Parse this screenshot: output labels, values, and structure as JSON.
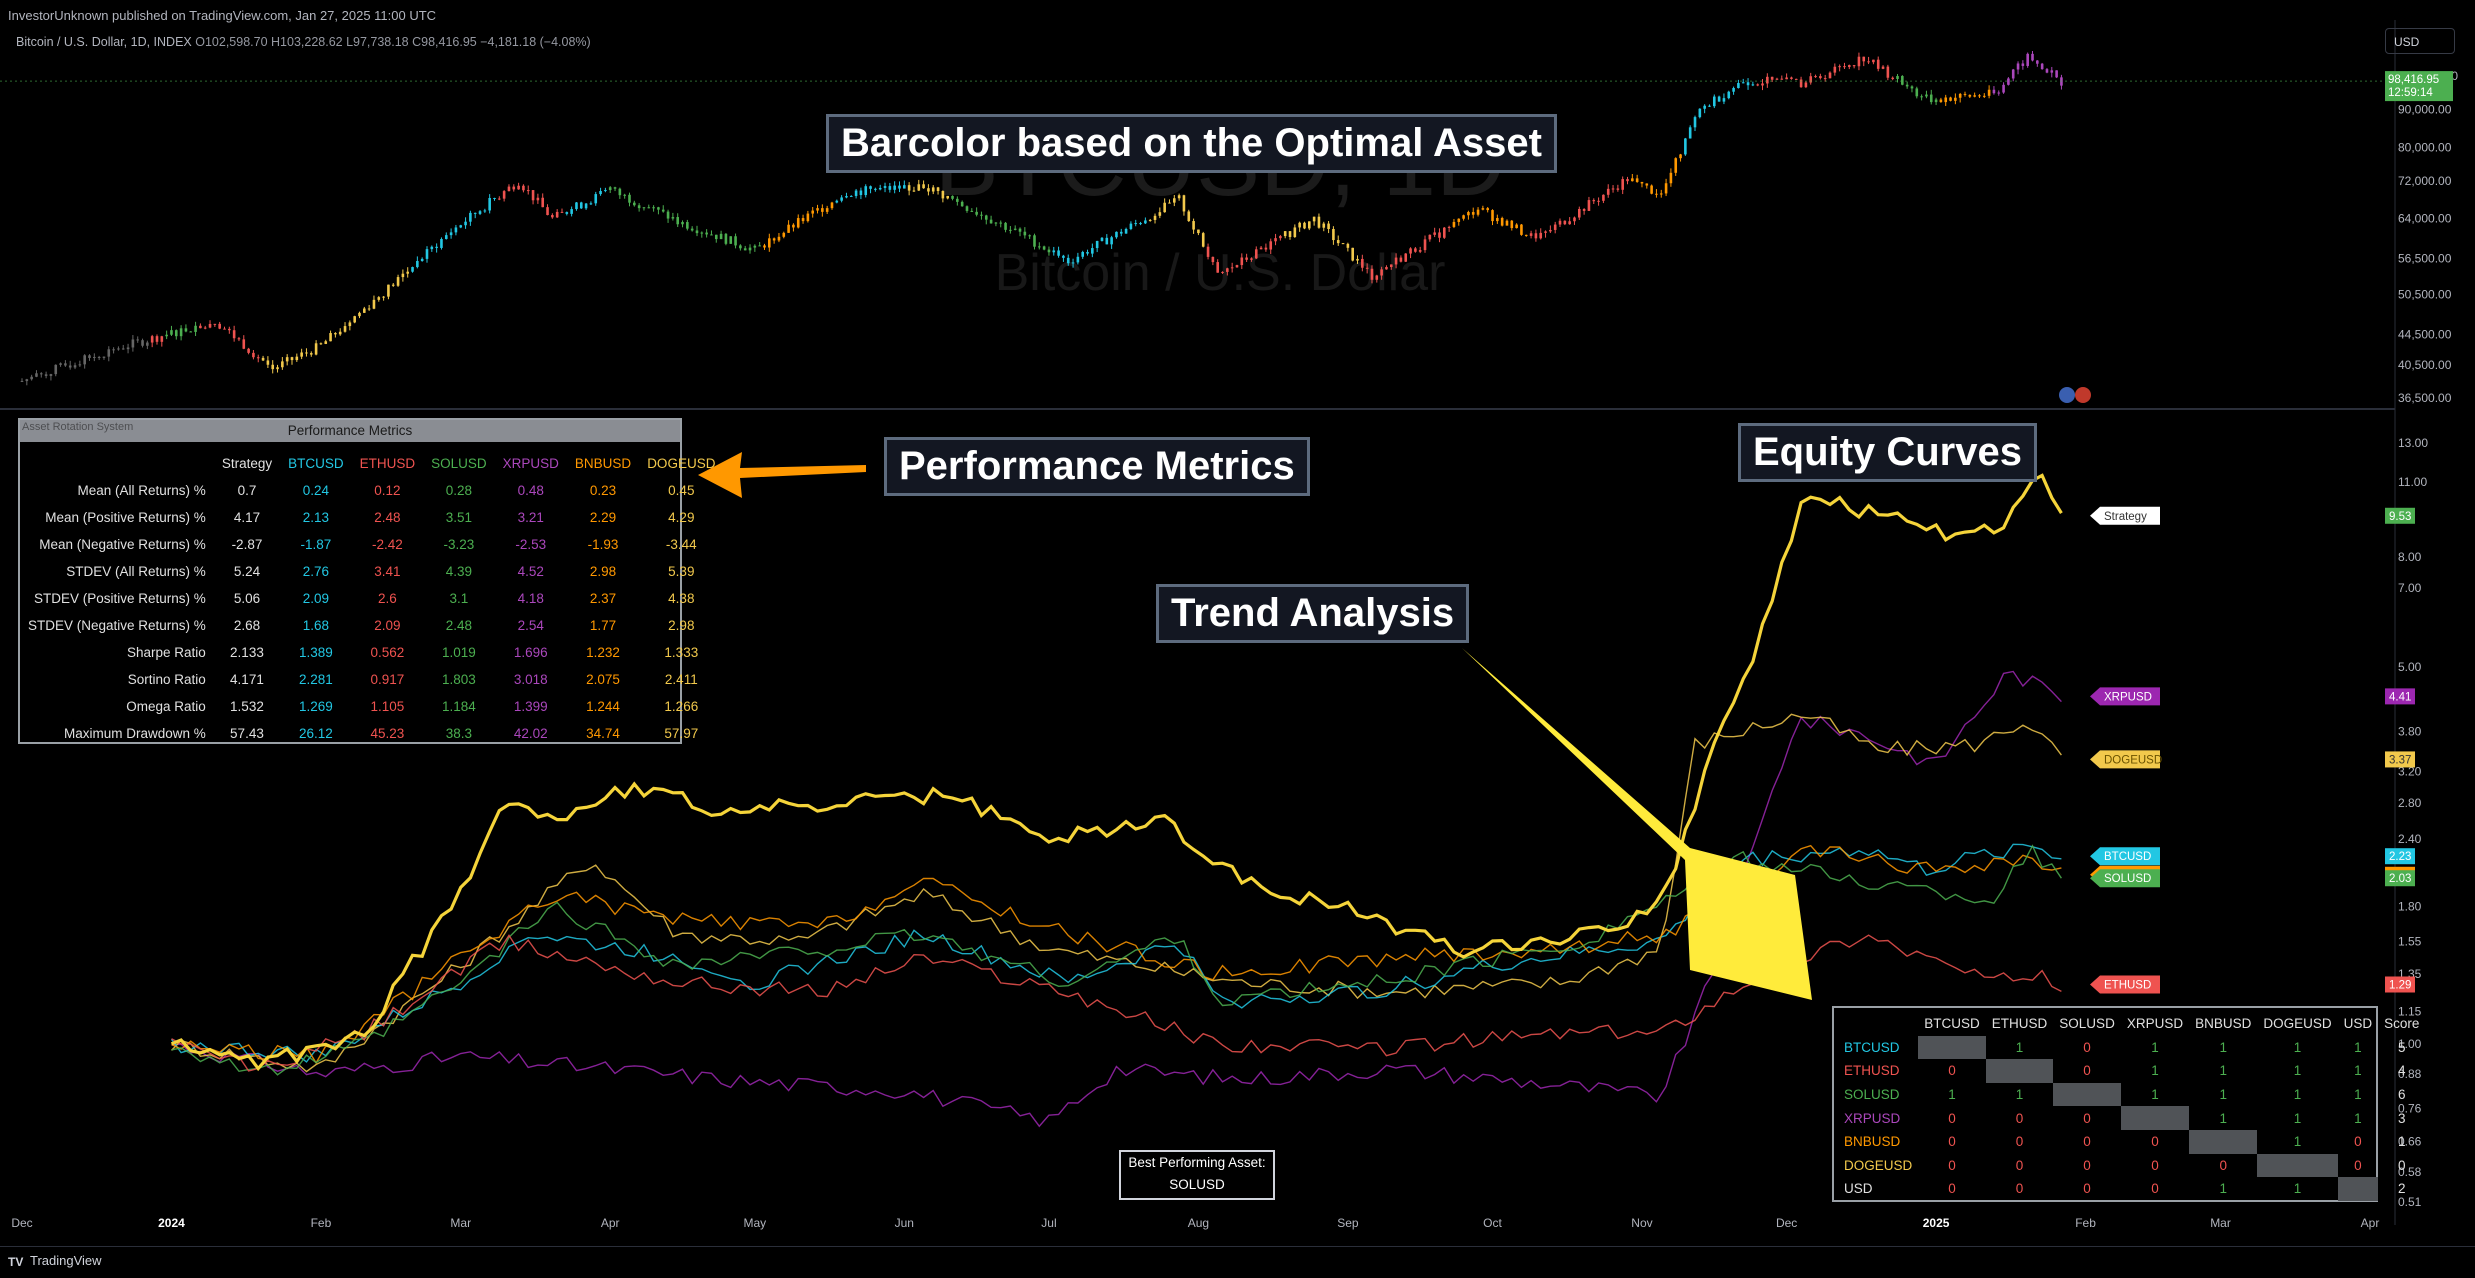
{
  "header": {
    "published": "InvestorUnknown published on TradingView.com, Jan 27, 2025 11:00 UTC",
    "symbol": "Bitcoin / U.S. Dollar, 1D, INDEX",
    "ohlc": "O102,598.70  H103,228.62  L97,738.18  C98,416.95  −4,181.18 (−4.08%)",
    "currency": "USD",
    "watermark_1": "BTCUSD, 1D",
    "watermark_2": "Bitcoin / U.S. Dollar"
  },
  "callouts": {
    "barcolor": "Barcolor based on the Optimal Asset",
    "performance": "Performance Metrics",
    "equity": "Equity Curves",
    "trend": "Trend Analysis"
  },
  "chart_data": [
    {
      "type": "candlestick",
      "name": "BTCUSD price",
      "y_scale": "log",
      "y_ticks": [
        "36,500.00",
        "40,500.00",
        "44,500.00",
        "50,500.00",
        "56,500.00",
        "64,000.00",
        "72,000.00",
        "80,000.00",
        "90,000.00",
        "100,000.00"
      ],
      "last_price": "98,416.95",
      "countdown": "12:59:14",
      "x_ticks": [
        "Dec",
        "2024",
        "Feb",
        "Mar",
        "Apr",
        "May",
        "Jun",
        "Jul",
        "Aug",
        "Sep",
        "Oct",
        "Nov",
        "Dec",
        "2025",
        "Feb",
        "Mar",
        "Apr"
      ],
      "close_path": [
        [
          "2023-12-01",
          38500
        ],
        [
          "2023-12-20",
          42500
        ],
        [
          "2024-01-10",
          46500
        ],
        [
          "2024-01-22",
          40000
        ],
        [
          "2024-02-01",
          43000
        ],
        [
          "2024-02-15",
          51500
        ],
        [
          "2024-02-28",
          61500
        ],
        [
          "2024-03-13",
          72000
        ],
        [
          "2024-03-20",
          64000
        ],
        [
          "2024-04-01",
          70000
        ],
        [
          "2024-04-15",
          63500
        ],
        [
          "2024-05-01",
          58000
        ],
        [
          "2024-05-20",
          69500
        ],
        [
          "2024-06-05",
          71000
        ],
        [
          "2024-06-25",
          61000
        ],
        [
          "2024-07-05",
          56000
        ],
        [
          "2024-07-28",
          68000
        ],
        [
          "2024-08-05",
          53500
        ],
        [
          "2024-08-25",
          64000
        ],
        [
          "2024-09-06",
          53500
        ],
        [
          "2024-09-28",
          66000
        ],
        [
          "2024-10-10",
          60000
        ],
        [
          "2024-10-29",
          72500
        ],
        [
          "2024-11-05",
          69000
        ],
        [
          "2024-11-13",
          90000
        ],
        [
          "2024-11-22",
          98500
        ],
        [
          "2024-12-05",
          98000
        ],
        [
          "2024-12-17",
          106000
        ],
        [
          "2024-12-30",
          93000
        ],
        [
          "2025-01-13",
          94500
        ],
        [
          "2025-01-20",
          106000
        ],
        [
          "2025-01-27",
          98400
        ]
      ]
    },
    {
      "type": "line",
      "name": "Equity Curves",
      "y_scale": "log",
      "y_ticks": [
        "0.51",
        "0.58",
        "0.66",
        "0.76",
        "0.88",
        "1.00",
        "1.15",
        "1.35",
        "1.55",
        "1.80",
        "2.40",
        "2.80",
        "3.20",
        "3.80",
        "5.00",
        "7.00",
        "8.00",
        "11.00",
        "13.00"
      ],
      "x_ticks": [
        "Dec",
        "2024",
        "Feb",
        "Mar",
        "Apr",
        "May",
        "Jun",
        "Jul",
        "Aug",
        "Sep",
        "Oct",
        "Nov",
        "Dec",
        "2025",
        "Feb",
        "Mar",
        "Apr"
      ],
      "series": [
        {
          "name": "Strategy",
          "color": "#ffffff",
          "last": "9.53",
          "points": [
            [
              "2024-01-01",
              1.0
            ],
            [
              "2024-01-20",
              0.92
            ],
            [
              "2024-02-10",
              1.05
            ],
            [
              "2024-03-01",
              1.9
            ],
            [
              "2024-03-10",
              2.9
            ],
            [
              "2024-03-20",
              2.6
            ],
            [
              "2024-04-05",
              3.0
            ],
            [
              "2024-04-25",
              2.7
            ],
            [
              "2024-05-20",
              2.8
            ],
            [
              "2024-06-10",
              2.9
            ],
            [
              "2024-06-30",
              2.4
            ],
            [
              "2024-07-25",
              2.6
            ],
            [
              "2024-08-10",
              2.0
            ],
            [
              "2024-08-30",
              1.8
            ],
            [
              "2024-09-25",
              1.5
            ],
            [
              "2024-10-20",
              1.6
            ],
            [
              "2024-11-05",
              1.8
            ],
            [
              "2024-11-15",
              3.4
            ],
            [
              "2024-11-25",
              5.5
            ],
            [
              "2024-12-05",
              10.5
            ],
            [
              "2024-12-20",
              9.5
            ],
            [
              "2025-01-05",
              8.8
            ],
            [
              "2025-01-15",
              9.0
            ],
            [
              "2025-01-22",
              11.5
            ],
            [
              "2025-01-27",
              9.53
            ]
          ]
        },
        {
          "name": "XRPUSD",
          "color": "#9c27b0",
          "last": "4.41",
          "points": [
            [
              "2024-01-01",
              1.0
            ],
            [
              "2024-02-01",
              0.88
            ],
            [
              "2024-03-01",
              0.95
            ],
            [
              "2024-04-01",
              0.9
            ],
            [
              "2024-05-01",
              0.85
            ],
            [
              "2024-06-01",
              0.82
            ],
            [
              "2024-07-01",
              0.72
            ],
            [
              "2024-07-15",
              0.9
            ],
            [
              "2024-08-10",
              0.86
            ],
            [
              "2024-09-10",
              0.9
            ],
            [
              "2024-10-15",
              0.84
            ],
            [
              "2024-11-05",
              0.8
            ],
            [
              "2024-11-15",
              1.3
            ],
            [
              "2024-12-03",
              4.0
            ],
            [
              "2024-12-15",
              3.8
            ],
            [
              "2025-01-01",
              3.3
            ],
            [
              "2025-01-16",
              4.9
            ],
            [
              "2025-01-27",
              4.41
            ]
          ]
        },
        {
          "name": "DOGEUSD",
          "color": "#f2c94c",
          "last": "3.37",
          "points": [
            [
              "2024-01-01",
              1.0
            ],
            [
              "2024-02-01",
              0.9
            ],
            [
              "2024-03-01",
              1.4
            ],
            [
              "2024-03-28",
              2.2
            ],
            [
              "2024-04-15",
              1.6
            ],
            [
              "2024-05-10",
              1.55
            ],
            [
              "2024-06-05",
              1.9
            ],
            [
              "2024-07-01",
              1.5
            ],
            [
              "2024-08-10",
              1.3
            ],
            [
              "2024-09-10",
              1.25
            ],
            [
              "2024-10-15",
              1.3
            ],
            [
              "2024-11-05",
              1.5
            ],
            [
              "2024-11-12",
              3.6
            ],
            [
              "2024-12-05",
              4.1
            ],
            [
              "2024-12-20",
              3.5
            ],
            [
              "2025-01-10",
              3.6
            ],
            [
              "2025-01-20",
              4.0
            ],
            [
              "2025-01-27",
              3.37
            ]
          ]
        },
        {
          "name": "BTCUSD",
          "color": "#22c7e3",
          "last": "2.23",
          "points": [
            [
              "2024-01-01",
              1.0
            ],
            [
              "2024-02-01",
              0.95
            ],
            [
              "2024-03-01",
              1.3
            ],
            [
              "2024-03-15",
              1.6
            ],
            [
              "2024-04-15",
              1.45
            ],
            [
              "2024-05-01",
              1.3
            ],
            [
              "2024-06-05",
              1.6
            ],
            [
              "2024-07-05",
              1.3
            ],
            [
              "2024-07-28",
              1.55
            ],
            [
              "2024-08-05",
              1.2
            ],
            [
              "2024-09-06",
              1.25
            ],
            [
              "2024-10-01",
              1.4
            ],
            [
              "2024-11-05",
              1.55
            ],
            [
              "2024-11-22",
              2.2
            ],
            [
              "2024-12-17",
              2.3
            ],
            [
              "2024-12-30",
              2.1
            ],
            [
              "2025-01-20",
              2.35
            ],
            [
              "2025-01-27",
              2.23
            ]
          ]
        },
        {
          "name": "BNBUSD",
          "color": "#ff9800",
          "last": "2.06",
          "points": [
            [
              "2024-01-01",
              1.0
            ],
            [
              "2024-02-01",
              0.95
            ],
            [
              "2024-03-01",
              1.45
            ],
            [
              "2024-03-20",
              1.9
            ],
            [
              "2024-04-15",
              1.7
            ],
            [
              "2024-05-15",
              1.65
            ],
            [
              "2024-06-05",
              2.0
            ],
            [
              "2024-07-05",
              1.6
            ],
            [
              "2024-08-05",
              1.35
            ],
            [
              "2024-09-10",
              1.45
            ],
            [
              "2024-10-15",
              1.5
            ],
            [
              "2024-11-05",
              1.6
            ],
            [
              "2024-11-25",
              1.95
            ],
            [
              "2024-12-05",
              2.3
            ],
            [
              "2024-12-30",
              2.1
            ],
            [
              "2025-01-20",
              2.2
            ],
            [
              "2025-01-27",
              2.06
            ]
          ]
        },
        {
          "name": "SOLUSD",
          "color": "#4caf50",
          "last": "2.03",
          "points": [
            [
              "2024-01-01",
              1.0
            ],
            [
              "2024-01-20",
              0.88
            ],
            [
              "2024-02-10",
              1.0
            ],
            [
              "2024-03-01",
              1.3
            ],
            [
              "2024-03-20",
              1.8
            ],
            [
              "2024-04-15",
              1.4
            ],
            [
              "2024-05-15",
              1.5
            ],
            [
              "2024-06-05",
              1.6
            ],
            [
              "2024-07-05",
              1.3
            ],
            [
              "2024-07-28",
              1.6
            ],
            [
              "2024-08-05",
              1.2
            ],
            [
              "2024-09-06",
              1.3
            ],
            [
              "2024-10-20",
              1.55
            ],
            [
              "2024-11-22",
              2.2
            ],
            [
              "2024-12-17",
              2.0
            ],
            [
              "2025-01-13",
              1.85
            ],
            [
              "2025-01-20",
              2.3
            ],
            [
              "2025-01-27",
              2.03
            ]
          ]
        },
        {
          "name": "ETHUSD",
          "color": "#ef5350",
          "last": "1.29",
          "points": [
            [
              "2024-01-01",
              1.0
            ],
            [
              "2024-01-20",
              0.9
            ],
            [
              "2024-02-10",
              1.05
            ],
            [
              "2024-03-10",
              1.55
            ],
            [
              "2024-04-15",
              1.3
            ],
            [
              "2024-05-15",
              1.25
            ],
            [
              "2024-06-05",
              1.45
            ],
            [
              "2024-07-05",
              1.25
            ],
            [
              "2024-08-05",
              1.0
            ],
            [
              "2024-09-06",
              0.98
            ],
            [
              "2024-10-15",
              1.05
            ],
            [
              "2024-11-05",
              1.05
            ],
            [
              "2024-11-25",
              1.35
            ],
            [
              "2024-12-17",
              1.6
            ],
            [
              "2024-12-30",
              1.45
            ],
            [
              "2025-01-13",
              1.3
            ],
            [
              "2025-01-20",
              1.35
            ],
            [
              "2025-01-27",
              1.29
            ]
          ]
        }
      ]
    }
  ],
  "metrics": {
    "ghost": "Asset Rotation System",
    "title": "Performance Metrics",
    "columns": [
      "Strategy",
      "BTCUSD",
      "ETHUSD",
      "SOLUSD",
      "XRPUSD",
      "BNBUSD",
      "DOGEUSD"
    ],
    "col_colors": [
      "#e0e0e0",
      "#22c7e3",
      "#ef5350",
      "#4caf50",
      "#ab47bc",
      "#ff9800",
      "#f2c94c"
    ],
    "rows": [
      {
        "label": "Mean (All Returns) %",
        "values": [
          "0.7",
          "0.24",
          "0.12",
          "0.28",
          "0.48",
          "0.23",
          "0.45"
        ]
      },
      {
        "label": "Mean (Positive Returns) %",
        "values": [
          "4.17",
          "2.13",
          "2.48",
          "3.51",
          "3.21",
          "2.29",
          "4.29"
        ]
      },
      {
        "label": "Mean (Negative Returns) %",
        "values": [
          "-2.87",
          "-1.87",
          "-2.42",
          "-3.23",
          "-2.53",
          "-1.93",
          "-3.44"
        ]
      },
      {
        "label": "STDEV (All Returns) %",
        "values": [
          "5.24",
          "2.76",
          "3.41",
          "4.39",
          "4.52",
          "2.98",
          "5.39"
        ]
      },
      {
        "label": "STDEV (Positive Returns) %",
        "values": [
          "5.06",
          "2.09",
          "2.6",
          "3.1",
          "4.18",
          "2.37",
          "4.38"
        ]
      },
      {
        "label": "STDEV (Negative Returns) %",
        "values": [
          "2.68",
          "1.68",
          "2.09",
          "2.48",
          "2.54",
          "1.77",
          "2.98"
        ]
      },
      {
        "label": "Sharpe Ratio",
        "values": [
          "2.133",
          "1.389",
          "0.562",
          "1.019",
          "1.696",
          "1.232",
          "1.333"
        ]
      },
      {
        "label": "Sortino Ratio",
        "values": [
          "4.171",
          "2.281",
          "0.917",
          "1.803",
          "3.018",
          "2.075",
          "2.411"
        ]
      },
      {
        "label": "Omega Ratio",
        "values": [
          "1.532",
          "1.269",
          "1.105",
          "1.184",
          "1.399",
          "1.244",
          "1.266"
        ]
      },
      {
        "label": "Maximum Drawdown %",
        "values": [
          "57.43",
          "26.12",
          "45.23",
          "38.3",
          "42.02",
          "34.74",
          "57.97"
        ]
      }
    ]
  },
  "trend": {
    "columns": [
      "BTCUSD",
      "ETHUSD",
      "SOLUSD",
      "XRPUSD",
      "BNBUSD",
      "DOGEUSD",
      "USD",
      "Score"
    ],
    "rows": [
      {
        "label": "BTCUSD",
        "color": "#22c7e3",
        "cells": [
          "",
          "1",
          "0",
          "1",
          "1",
          "1",
          "1",
          "5"
        ]
      },
      {
        "label": "ETHUSD",
        "color": "#ef5350",
        "cells": [
          "0",
          "",
          "0",
          "1",
          "1",
          "1",
          "1",
          "4"
        ]
      },
      {
        "label": "SOLUSD",
        "color": "#4caf50",
        "cells": [
          "1",
          "1",
          "",
          "1",
          "1",
          "1",
          "1",
          "6"
        ]
      },
      {
        "label": "XRPUSD",
        "color": "#ab47bc",
        "cells": [
          "0",
          "0",
          "0",
          "",
          "1",
          "1",
          "1",
          "3"
        ]
      },
      {
        "label": "BNBUSD",
        "color": "#ff9800",
        "cells": [
          "0",
          "0",
          "0",
          "0",
          "",
          "1",
          "0",
          "1"
        ]
      },
      {
        "label": "DOGEUSD",
        "color": "#f2c94c",
        "cells": [
          "0",
          "0",
          "0",
          "0",
          "0",
          "",
          "0",
          "0"
        ]
      },
      {
        "label": "USD",
        "color": "#e0e0e0",
        "cells": [
          "0",
          "0",
          "0",
          "0",
          "1",
          "1",
          "",
          "2"
        ]
      }
    ]
  },
  "best": {
    "line1": "Best Performing Asset:",
    "line2": "SOLUSD"
  },
  "footer": {
    "brand": "TradingView"
  }
}
